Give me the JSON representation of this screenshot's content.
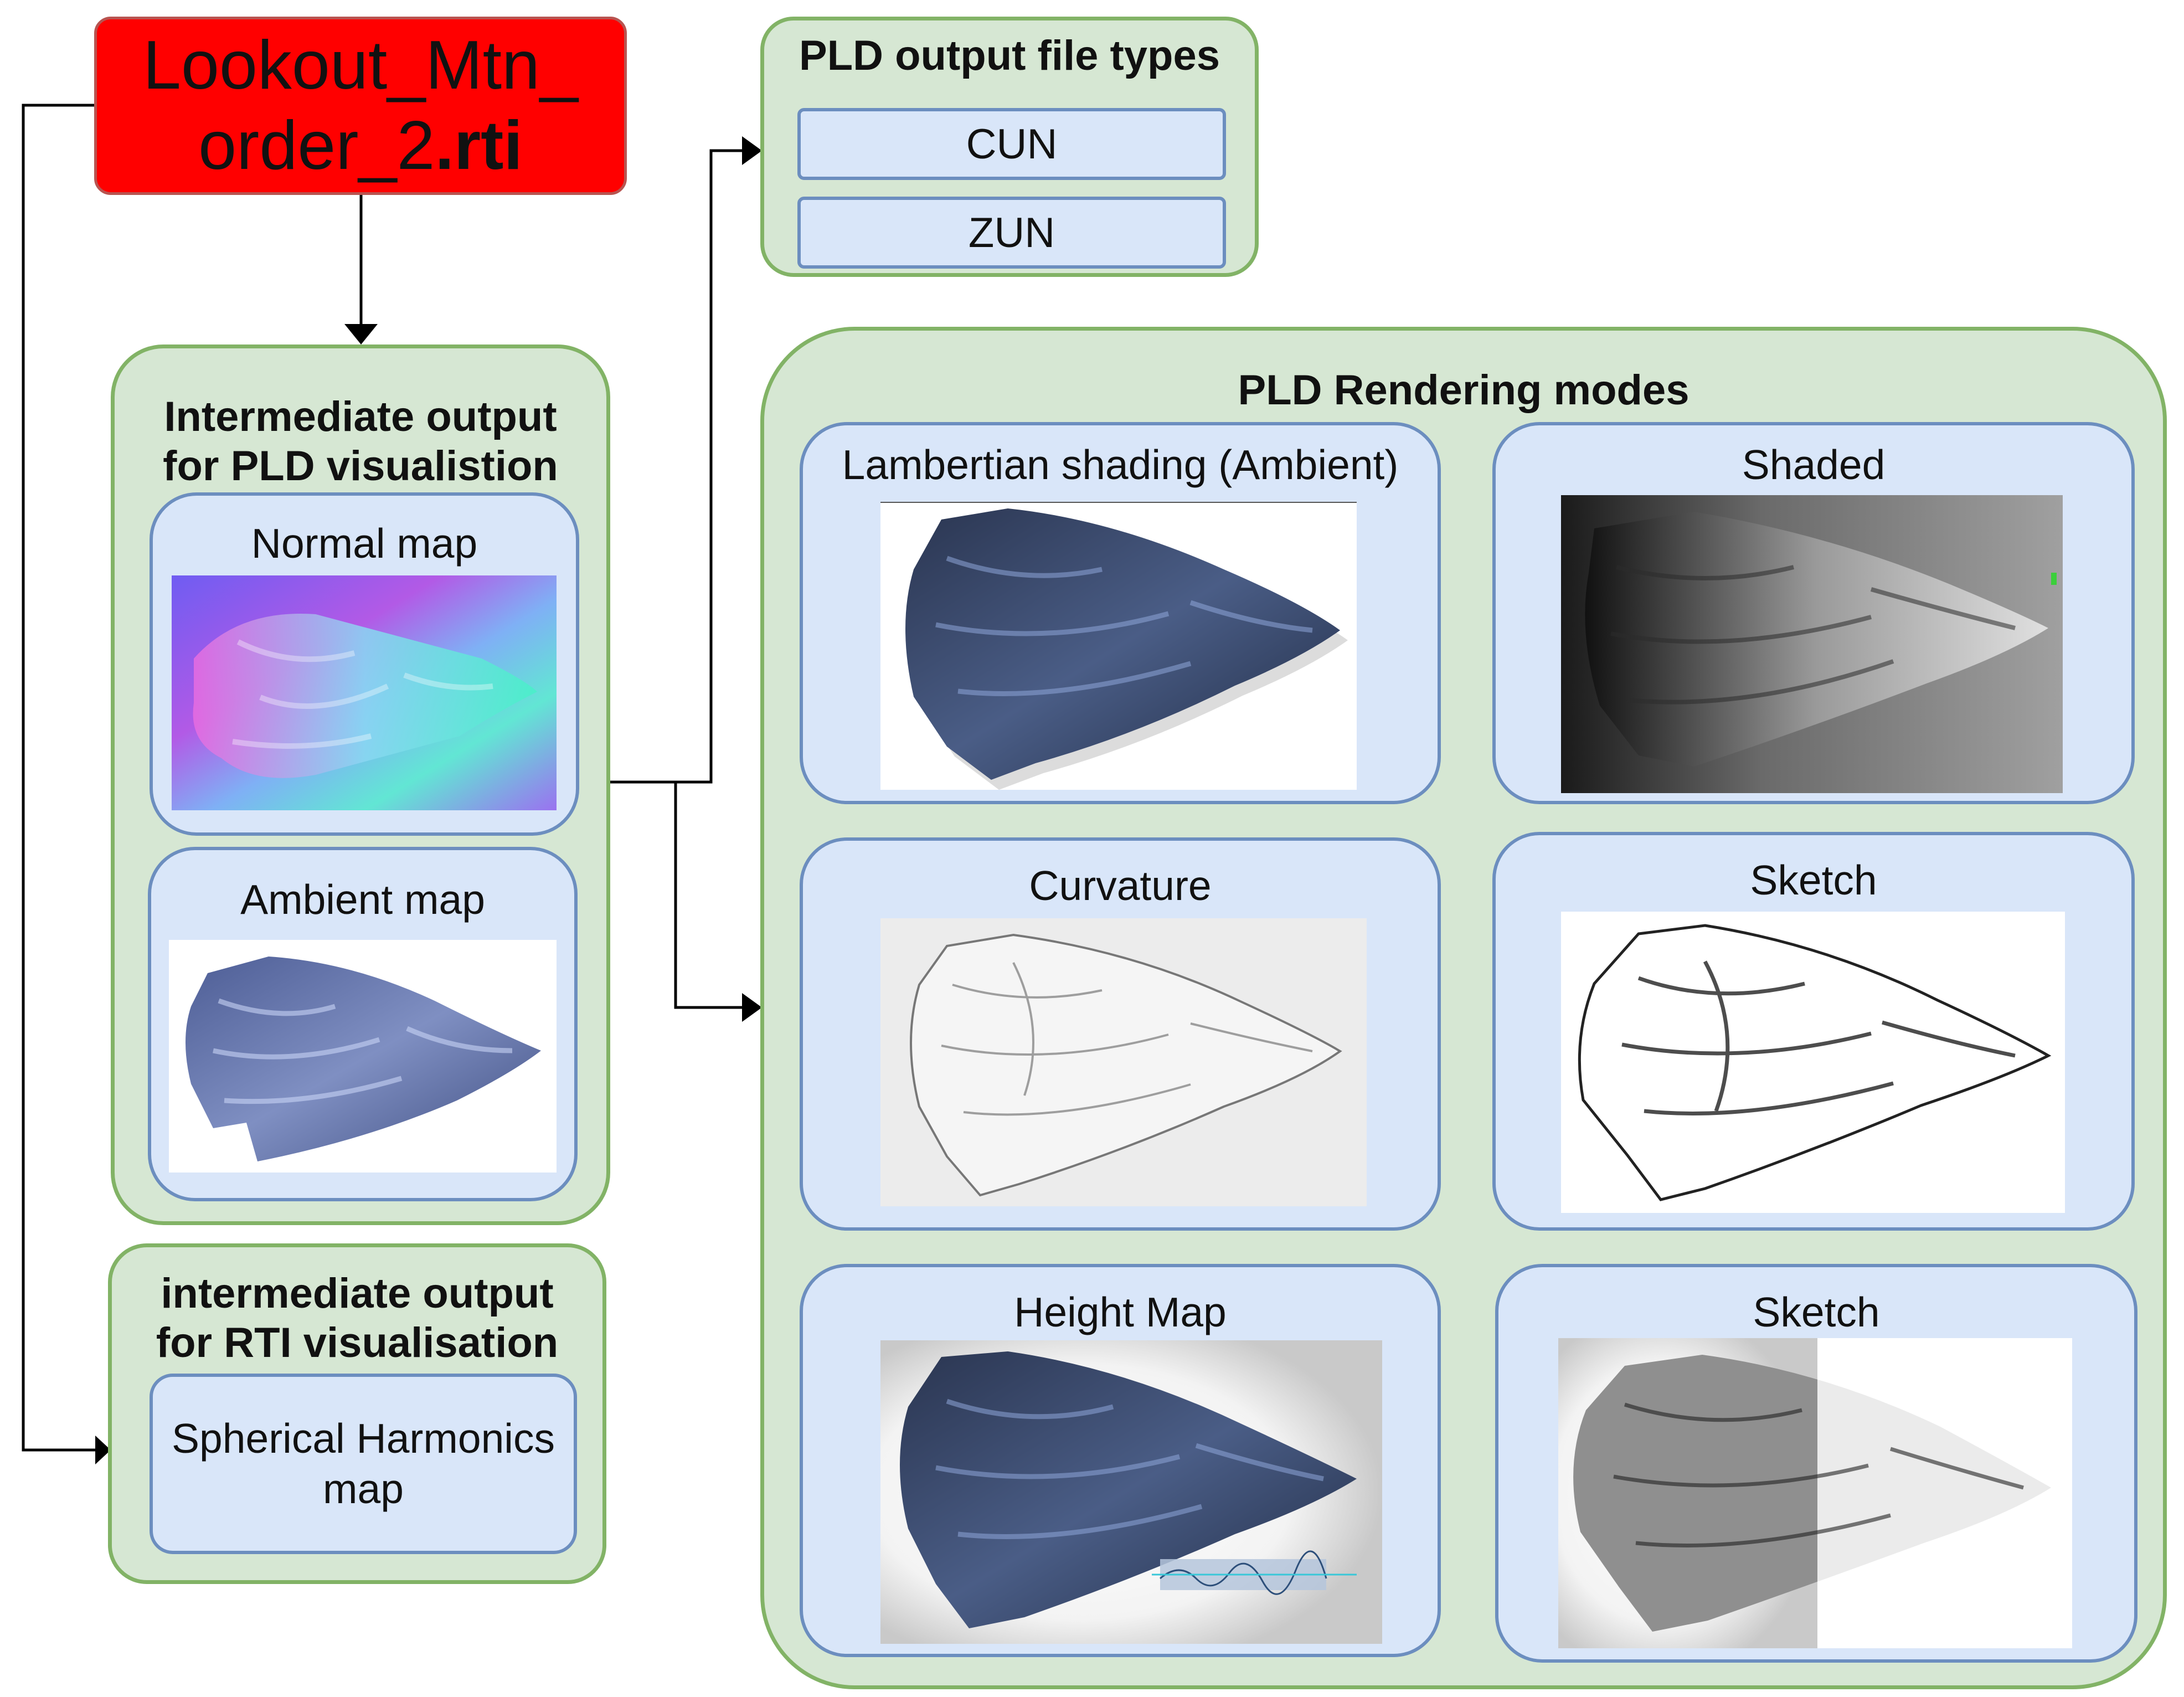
{
  "source_file": {
    "name_line1": "Lookout_Mtn_",
    "name_line2_plain": "order_2",
    "name_line2_bold": ".rti"
  },
  "file_types": {
    "title": "PLD output file types",
    "items": [
      "CUN",
      "ZUN"
    ]
  },
  "pld_intermediate": {
    "title_line1": "Intermediate output",
    "title_line2": "for PLD visualistion",
    "maps": [
      {
        "label": "Normal map",
        "icon": "normal-map-image"
      },
      {
        "label": "Ambient map",
        "icon": "ambient-map-image"
      }
    ]
  },
  "rti_intermediate": {
    "title_line1": "intermediate output",
    "title_line2": "for RTI visualisation",
    "map_line1": "Spherical Harmonics",
    "map_line2": "map"
  },
  "rendering_modes": {
    "title": "PLD Rendering modes",
    "modes": [
      {
        "label": "Lambertian shading (Ambient)",
        "icon": "lambertian-render-image"
      },
      {
        "label": "Shaded",
        "icon": "shaded-render-image"
      },
      {
        "label": "Curvature",
        "icon": "curvature-render-image"
      },
      {
        "label": "Sketch",
        "icon": "sketch-render-image"
      },
      {
        "label": "Height Map",
        "icon": "height-map-render-image"
      },
      {
        "label": "Sketch",
        "icon": "sketch-split-render-image"
      }
    ]
  },
  "colors": {
    "source_fill": "#ff0000",
    "group_fill": "#d6e7d3",
    "group_stroke": "#82b366",
    "panel_fill": "#d9e6f9",
    "panel_stroke": "#6c8ebf",
    "connector": "#000000"
  }
}
